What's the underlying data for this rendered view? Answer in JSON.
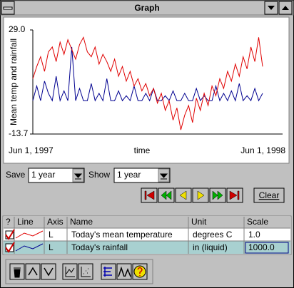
{
  "window": {
    "title": "Graph"
  },
  "chart_data": {
    "type": "line",
    "ylabel": "Mean temp and rainfall",
    "xlabel": "time",
    "x_start_label": "Jun 1, 1997",
    "x_end_label": "Jun 1, 1998",
    "ylim": [
      -13.7,
      29.0
    ],
    "yticks": [
      {
        "value": 29.0,
        "label": "29.0"
      },
      {
        "value": -13.7,
        "label": "-13.7"
      }
    ],
    "series": [
      {
        "name": "Today's mean temperature",
        "color": "#e00000",
        "values": [
          9,
          14,
          18,
          12,
          20,
          22,
          16,
          24,
          19,
          25,
          21,
          17,
          23,
          26,
          20,
          18,
          22,
          15,
          19,
          16,
          12,
          17,
          10,
          14,
          8,
          12,
          6,
          9,
          4,
          7,
          2,
          5,
          -1,
          3,
          -4,
          0,
          -8,
          -3,
          -12,
          -6,
          -2,
          -9,
          1,
          -4,
          3,
          -2,
          6,
          2,
          9,
          5,
          12,
          8,
          15,
          10,
          18,
          13,
          22,
          16,
          26,
          14
        ]
      },
      {
        "name": "Today's rainfall",
        "color": "#000090",
        "values": [
          0,
          6,
          0,
          8,
          3,
          0,
          10,
          0,
          4,
          0,
          22,
          0,
          5,
          0,
          0,
          7,
          0,
          3,
          0,
          9,
          0,
          0,
          4,
          0,
          2,
          0,
          6,
          0,
          0,
          3,
          0,
          5,
          0,
          0,
          2,
          0,
          4,
          0,
          0,
          3,
          0,
          0,
          5,
          0,
          2,
          0,
          0,
          6,
          0,
          3,
          0,
          4,
          0,
          7,
          0,
          2,
          0,
          5,
          0,
          3
        ]
      }
    ]
  },
  "controls": {
    "save_label": "Save",
    "save_value": "1 year",
    "show_label": "Show",
    "show_value": "1 year",
    "clear": "Clear"
  },
  "table": {
    "headers": [
      "?",
      "Line",
      "Axis",
      "Name",
      "Unit",
      "Scale"
    ],
    "rows": [
      [
        "L",
        "Today's mean temperature",
        "degrees C",
        "1.0"
      ],
      [
        "L",
        "Today's rainfall",
        "in (liquid)",
        "1000.0"
      ]
    ]
  }
}
